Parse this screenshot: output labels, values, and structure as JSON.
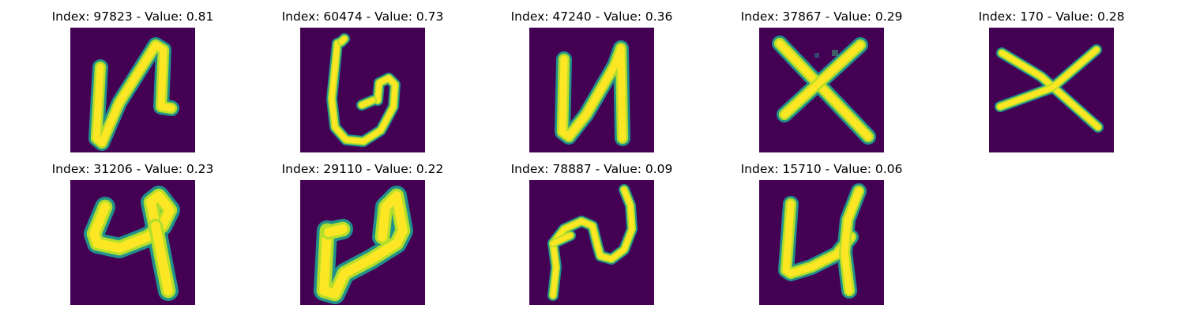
{
  "figure": {
    "colors": {
      "background": "#440154",
      "stroke_core": "#fde725",
      "stroke_mid": "#b5de2b",
      "stroke_edge": "#21918c"
    },
    "panels": [
      {
        "title": "Index: 97823 - Value: 0.81",
        "index": 97823,
        "value": 0.81,
        "glyph": "n"
      },
      {
        "title": "Index: 60474 - Value: 0.73",
        "index": 60474,
        "value": 0.73,
        "glyph": "g"
      },
      {
        "title": "Index: 47240 - Value: 0.36",
        "index": 47240,
        "value": 0.36,
        "glyph": "n"
      },
      {
        "title": "Index: 37867 - Value: 0.29",
        "index": 37867,
        "value": 0.29,
        "glyph": "x"
      },
      {
        "title": "Index: 170 - Value: 0.28",
        "index": 170,
        "value": 0.28,
        "glyph": "x"
      },
      {
        "title": "Index: 31206 - Value: 0.23",
        "index": 31206,
        "value": 0.23,
        "glyph": "4"
      },
      {
        "title": "Index: 29110 - Value: 0.22",
        "index": 29110,
        "value": 0.22,
        "glyph": "4"
      },
      {
        "title": "Index: 78887 - Value: 0.09",
        "index": 78887,
        "value": 0.09,
        "glyph": "n"
      },
      {
        "title": "Index: 15710 - Value: 0.06",
        "index": 15710,
        "value": 0.06,
        "glyph": "4"
      }
    ]
  }
}
